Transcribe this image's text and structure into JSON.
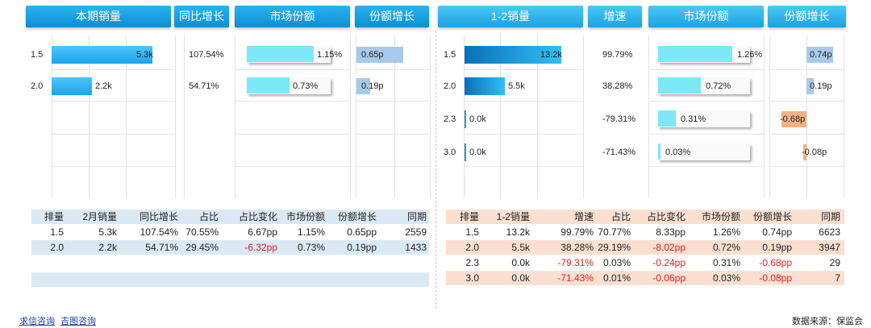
{
  "left": {
    "headers": [
      "本期销量",
      "同比增长",
      "市场份额",
      "份额增长"
    ],
    "rows": [
      {
        "label": "1.5",
        "sales": "5.3k",
        "sales_frac": 0.82,
        "yoy": "107.54%",
        "share": "1.15%",
        "share_frac": 0.78,
        "share_growth": "0.65p",
        "growth_frac": 0.85
      },
      {
        "label": "2.0",
        "sales": "2.2k",
        "sales_frac": 0.33,
        "yoy": "54.71%",
        "share": "0.73%",
        "share_frac": 0.5,
        "share_growth": "0.19p",
        "growth_frac": 0.25
      }
    ],
    "table": {
      "columns": [
        "排量",
        "2月销量",
        "同比增长",
        "占比",
        "占比变化",
        "市场份额",
        "份额增长",
        "同期"
      ],
      "rows": [
        [
          "1.5",
          "5.3k",
          "107.54%",
          "70.55%",
          "6.67pp",
          "1.15%",
          "0.65pp",
          "2559"
        ],
        [
          "2.0",
          "2.2k",
          "54.71%",
          "29.45%",
          "-6.32pp",
          "0.73%",
          "0.19pp",
          "1433"
        ]
      ]
    }
  },
  "right": {
    "headers": [
      "1-2销量",
      "增速",
      "市场份额",
      "份额增长"
    ],
    "rows": [
      {
        "label": "1.5",
        "sales": "13.2k",
        "sales_frac": 1.0,
        "growth": "99.79%",
        "share": "1.26%",
        "share_frac": 0.78,
        "share_growth": "0.74p",
        "growth_val": 0.74
      },
      {
        "label": "2.0",
        "sales": "5.5k",
        "sales_frac": 0.42,
        "growth": "38.28%",
        "share": "0.72%",
        "share_frac": 0.45,
        "share_growth": "0.19p",
        "growth_val": 0.19
      },
      {
        "label": "2.3",
        "sales": "0.0k",
        "sales_frac": 0.0,
        "growth": "-79.31%",
        "share": "0.31%",
        "share_frac": 0.19,
        "share_growth": "-0.68p",
        "growth_val": -0.68
      },
      {
        "label": "3.0",
        "sales": "0.0k",
        "sales_frac": 0.0,
        "growth": "-71.43%",
        "share": "0.03%",
        "share_frac": 0.02,
        "share_growth": "-0.08p",
        "growth_val": -0.08
      }
    ],
    "table": {
      "columns": [
        "排量",
        "1-2销量",
        "增速",
        "占比",
        "占比变化",
        "市场份额",
        "份额增长",
        "同期"
      ],
      "rows": [
        [
          "1.5",
          "13.2k",
          "99.79%",
          "70.77%",
          "8.33pp",
          "1.26%",
          "0.74pp",
          "6623"
        ],
        [
          "2.0",
          "5.5k",
          "38.28%",
          "29.19%",
          "-8.02pp",
          "0.72%",
          "0.19pp",
          "3947"
        ],
        [
          "2.3",
          "0.0k",
          "-79.31%",
          "0.03%",
          "-0.24pp",
          "0.31%",
          "-0.68pp",
          "29"
        ],
        [
          "3.0",
          "0.0k",
          "-71.43%",
          "0.01%",
          "-0.06pp",
          "0.03%",
          "-0.08pp",
          "7"
        ]
      ]
    }
  },
  "footer": {
    "links": [
      "求信咨询",
      "吉图咨询"
    ],
    "source": "数据来源：保监会"
  },
  "colors": {
    "header": "#0b8ed3",
    "left_table_header": "#dbe9f5",
    "right_table_header": "#fbe0d2",
    "negative": "#e02020"
  }
}
